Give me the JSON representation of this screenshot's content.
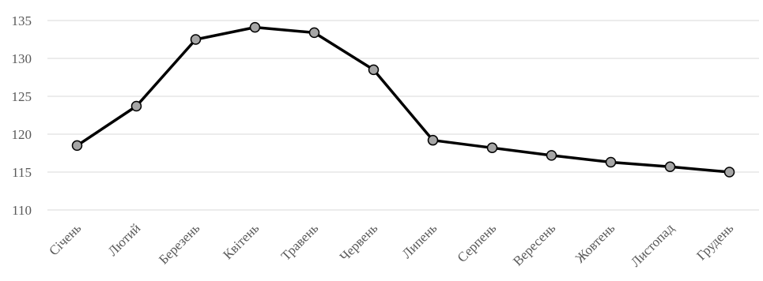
{
  "chart_data": {
    "type": "line",
    "title": "",
    "xlabel": "",
    "ylabel": "",
    "categories": [
      "Січень",
      "Лютий",
      "Березень",
      "Квітень",
      "Травень",
      "Червень",
      "Липень",
      "Серпень",
      "Вересень",
      "Жовтень",
      "Листопад",
      "Грудень"
    ],
    "series": [
      {
        "values": [
          118.5,
          123.7,
          132.5,
          134.1,
          133.4,
          128.5,
          119.2,
          118.2,
          117.2,
          116.3,
          115.7,
          115.0
        ]
      }
    ],
    "ylim": [
      110,
      135
    ],
    "yticks": [
      "110",
      "115",
      "120",
      "125",
      "130",
      "135"
    ],
    "grid": "horizontal",
    "legend": "none",
    "colors": {
      "line": "#000000",
      "marker_fill": "#a6a6a6",
      "grid": "#d9d9d9",
      "text": "#595959"
    }
  }
}
